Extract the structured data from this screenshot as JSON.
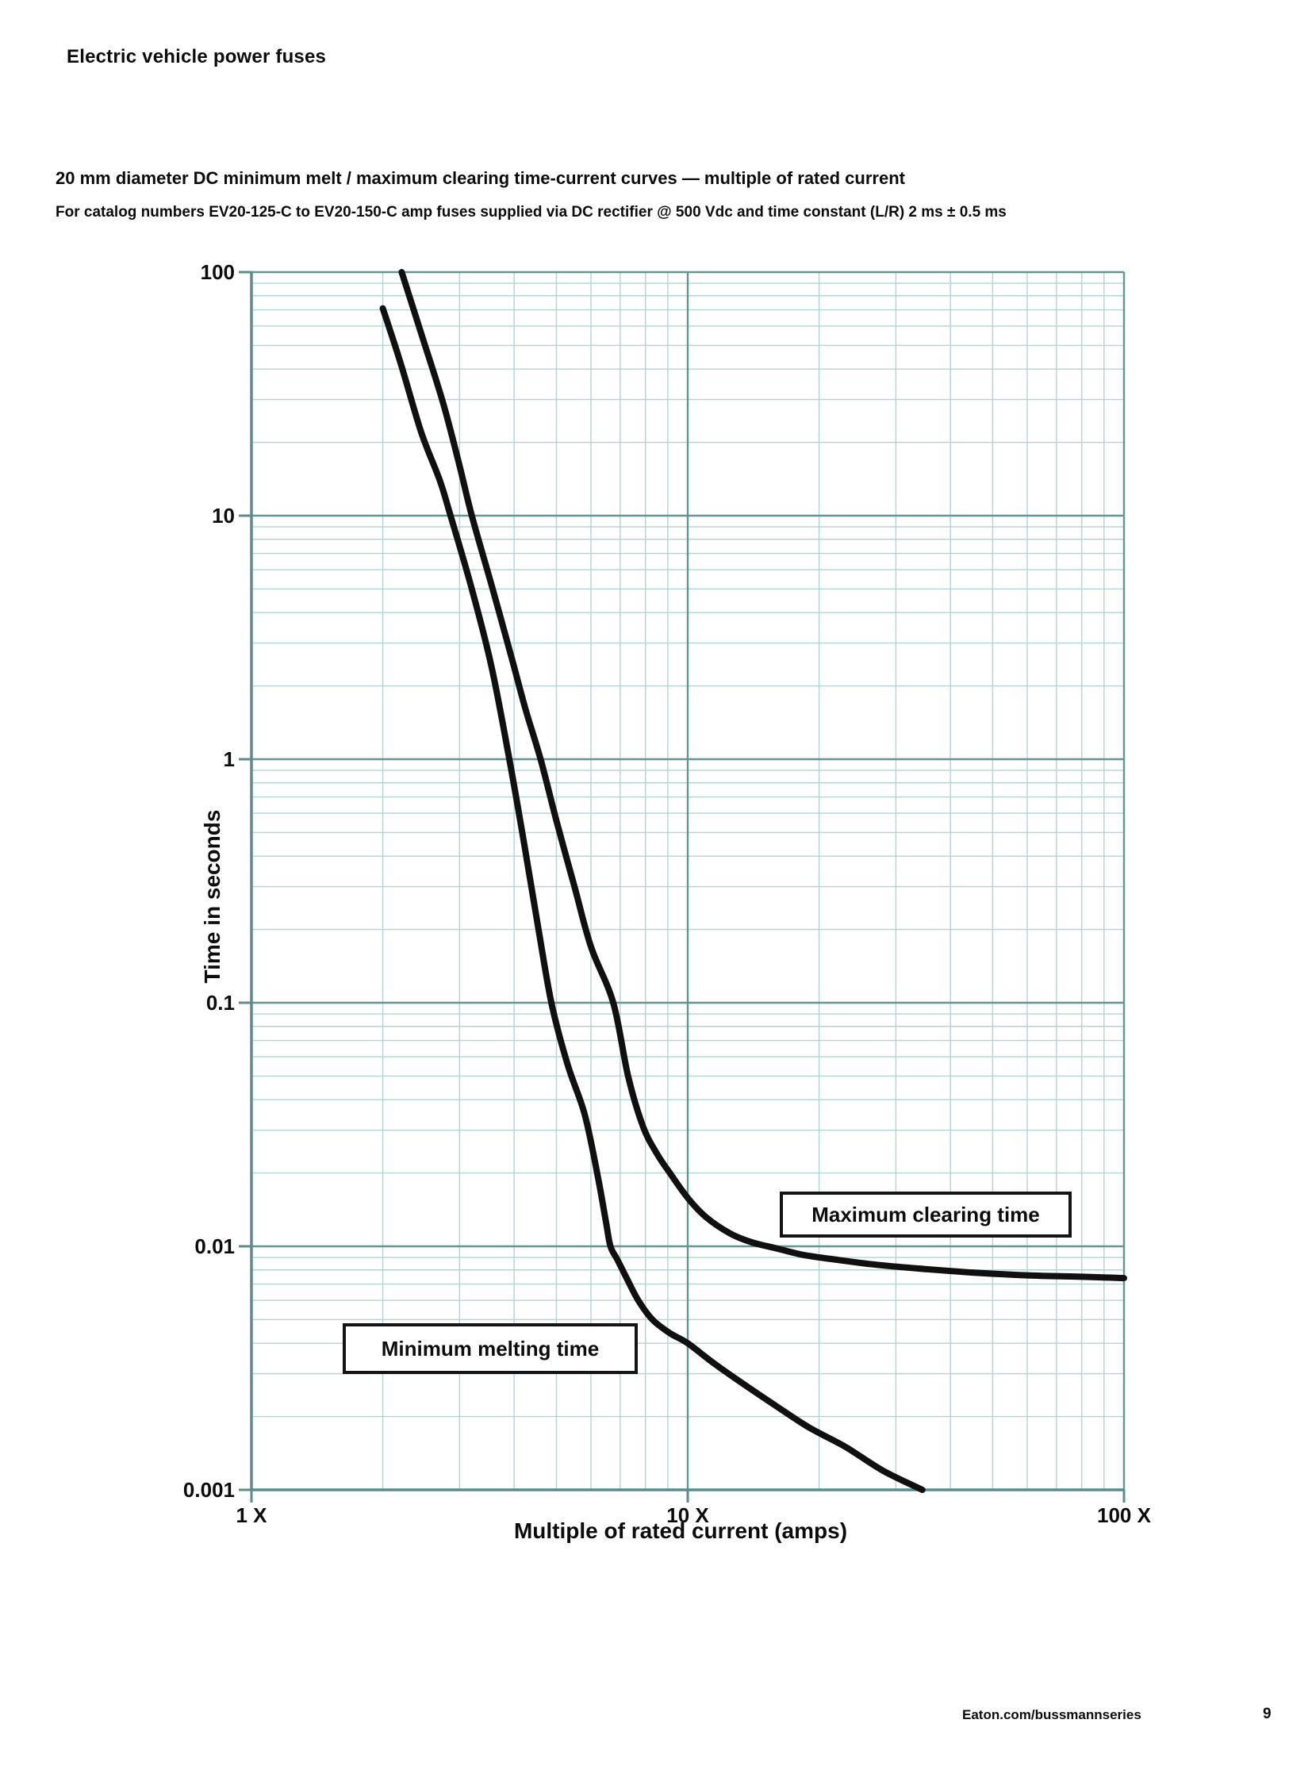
{
  "page": {
    "header": "Electric vehicle power fuses"
  },
  "chart": {
    "title": "20 mm diameter DC minimum melt / maximum clearing time-current curves — multiple of rated current",
    "subtitle": "For catalog numbers EV20-125-C to EV20-150-C amp fuses supplied via DC rectifier @ 500 Vdc and time constant (L/R) 2 ms ± 0.5 ms",
    "curve_labels": {
      "min": "Minimum melting time",
      "max": "Maximum clearing time"
    }
  },
  "footer": {
    "website": "Eaton.com/bussmannseries",
    "page_number": "9"
  },
  "colors": {
    "grid_minor": "#b0d4d4",
    "grid_major": "#639595",
    "axis": "#5b8c8c",
    "curve": "#101010",
    "text": "#0c0c0c"
  },
  "chart_data": {
    "type": "line",
    "title": "20 mm diameter DC minimum melt / maximum clearing time-current curves — multiple of rated current",
    "subtitle": "For catalog numbers EV20-125-C to EV20-150-C amp fuses supplied via DC rectifier @ 500 Vdc and time constant (L/R) 2 ms ± 0.5 ms",
    "xlabel": "Multiple of rated current (amps)",
    "ylabel": "Time in seconds",
    "x_scale": "log",
    "y_scale": "log",
    "xlim": [
      1,
      100
    ],
    "ylim": [
      0.001,
      100
    ],
    "x_ticks": [
      {
        "value": 1,
        "label": "1 X"
      },
      {
        "value": 10,
        "label": "10 X"
      },
      {
        "value": 100,
        "label": "100 X"
      }
    ],
    "y_ticks": [
      {
        "value": 100,
        "label": "100"
      },
      {
        "value": 10,
        "label": "10"
      },
      {
        "value": 1,
        "label": "1"
      },
      {
        "value": 0.1,
        "label": "0.1"
      },
      {
        "value": 0.01,
        "label": "0.01"
      },
      {
        "value": 0.001,
        "label": "0.001"
      }
    ],
    "grid": "log-log graph paper, minor lines each decade step, heavier decade lines",
    "legend_position": "labeled boxes drawn on plot",
    "series": [
      {
        "name": "Minimum melting time",
        "points": [
          [
            2.0,
            71
          ],
          [
            2.2,
            42
          ],
          [
            2.45,
            22
          ],
          [
            2.7,
            14
          ],
          [
            2.86,
            10
          ],
          [
            3.2,
            5.0
          ],
          [
            3.55,
            2.4
          ],
          [
            3.9,
            1.0
          ],
          [
            4.2,
            0.47
          ],
          [
            4.55,
            0.2
          ],
          [
            4.87,
            0.1
          ],
          [
            5.3,
            0.056
          ],
          [
            5.8,
            0.035
          ],
          [
            6.2,
            0.02
          ],
          [
            6.5,
            0.0125
          ],
          [
            6.65,
            0.01
          ],
          [
            6.9,
            0.0088
          ],
          [
            7.3,
            0.0072
          ],
          [
            7.7,
            0.006
          ],
          [
            8.3,
            0.005
          ],
          [
            9.1,
            0.0044
          ],
          [
            10,
            0.004
          ],
          [
            11.5,
            0.0033
          ],
          [
            13.5,
            0.0027
          ],
          [
            16,
            0.0022
          ],
          [
            19,
            0.0018
          ],
          [
            23,
            0.0015
          ],
          [
            28,
            0.0012
          ],
          [
            34.5,
            0.001
          ]
        ]
      },
      {
        "name": "Maximum clearing time",
        "points": [
          [
            2.21,
            100
          ],
          [
            2.45,
            56
          ],
          [
            2.75,
            29
          ],
          [
            3.0,
            16
          ],
          [
            3.2,
            10
          ],
          [
            3.55,
            5.2
          ],
          [
            3.95,
            2.6
          ],
          [
            4.25,
            1.6
          ],
          [
            4.6,
            1.0
          ],
          [
            5.0,
            0.56
          ],
          [
            5.5,
            0.3
          ],
          [
            6.0,
            0.17
          ],
          [
            6.75,
            0.1
          ],
          [
            7.3,
            0.05
          ],
          [
            7.9,
            0.031
          ],
          [
            8.5,
            0.024
          ],
          [
            9.1,
            0.02
          ],
          [
            10,
            0.0158
          ],
          [
            11,
            0.0132
          ],
          [
            12.5,
            0.0113
          ],
          [
            14,
            0.0104
          ],
          [
            16,
            0.0098
          ],
          [
            18.5,
            0.0092
          ],
          [
            22,
            0.0088
          ],
          [
            27,
            0.0084
          ],
          [
            34,
            0.0081
          ],
          [
            45,
            0.0078
          ],
          [
            60,
            0.0076
          ],
          [
            80,
            0.0075
          ],
          [
            100,
            0.0074
          ]
        ]
      }
    ]
  }
}
